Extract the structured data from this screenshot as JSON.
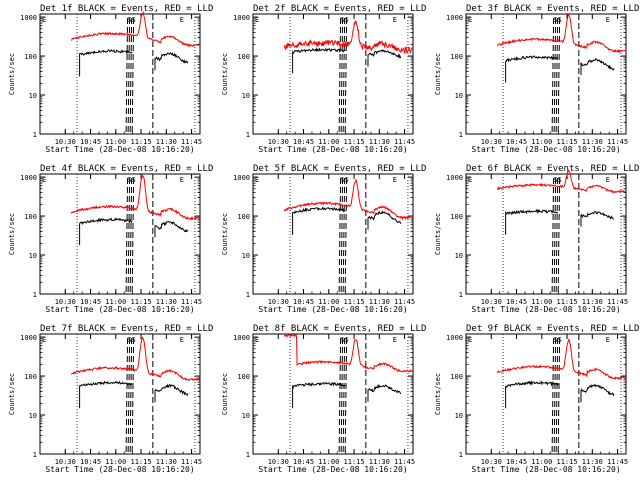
{
  "chart_data": [
    {
      "type": "line",
      "title": "Det 1f BLACK = Events, RED = LLD"
    },
    {
      "type": "line",
      "title": "Det 2f BLACK = Events, RED = LLD"
    },
    {
      "type": "line",
      "title": "Det 3f BLACK = Events, RED = LLD"
    },
    {
      "type": "line",
      "title": "Det 4f BLACK = Events, RED = LLD"
    },
    {
      "type": "line",
      "title": "Det 5f BLACK = Events, RED = LLD"
    },
    {
      "type": "line",
      "title": "Det 6f BLACK = Events, RED = LLD"
    },
    {
      "type": "line",
      "title": "Det 7f BLACK = Events, RED = LLD"
    },
    {
      "type": "line",
      "title": "Det 8f BLACK = Events, RED = LLD"
    },
    {
      "type": "line",
      "title": "Det 9f BLACK = Events, RED = LLD"
    }
  ],
  "shared": {
    "xlabel": "Start Time (28-Dec-08 10:16:20)",
    "ylabel": "Counts/sec",
    "x_ticks": [
      "10:30",
      "10:45",
      "11:00",
      "11:15",
      "11:30",
      "11:45"
    ],
    "y_ticks": [
      "1",
      "10",
      "100",
      "1000"
    ],
    "ylim": [
      1,
      1200
    ],
    "yscale": "log",
    "markers": {
      "E": "E",
      "S": "S"
    },
    "colors": {
      "events": "#000000",
      "lld": "#ff0000"
    }
  }
}
